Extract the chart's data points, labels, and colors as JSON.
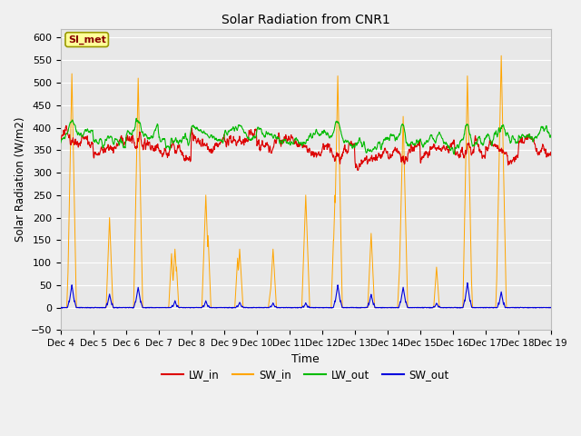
{
  "title": "Solar Radiation from CNR1",
  "xlabel": "Time",
  "ylabel": "Solar Radiation (W/m2)",
  "ylim": [
    -50,
    620
  ],
  "yticks": [
    -50,
    0,
    50,
    100,
    150,
    200,
    250,
    300,
    350,
    400,
    450,
    500,
    550,
    600
  ],
  "x_labels": [
    "Dec 4",
    "Dec 5",
    "Dec 6",
    "Dec 7",
    "Dec 8",
    "Dec 9",
    "Dec 10",
    "Dec 11",
    "Dec 12",
    "Dec 13",
    "Dec 14",
    "Dec 15",
    "Dec 16",
    "Dec 17",
    "Dec 18",
    "Dec 19"
  ],
  "colors": {
    "LW_in": "#dd0000",
    "SW_in": "#ffa500",
    "LW_out": "#00bb00",
    "SW_out": "#0000dd"
  },
  "fig_bg_color": "#f0f0f0",
  "plot_bg_color": "#e8e8e8",
  "grid_color": "#ffffff",
  "annotation_text": "SI_met",
  "annotation_color": "#880000",
  "annotation_bg": "#ffff99",
  "annotation_edge": "#999900",
  "n_days": 15,
  "points_per_day": 144,
  "lw_in_base": 360,
  "lw_out_base": 375,
  "day_peaks_sw_in": [
    520,
    170,
    510,
    130,
    120,
    250,
    160,
    125,
    250,
    515,
    165,
    425,
    90,
    515,
    560
  ],
  "day_peaks_sw_out": [
    50,
    30,
    45,
    15,
    15,
    10,
    10,
    10,
    50,
    50,
    30,
    45,
    10,
    55,
    35
  ]
}
